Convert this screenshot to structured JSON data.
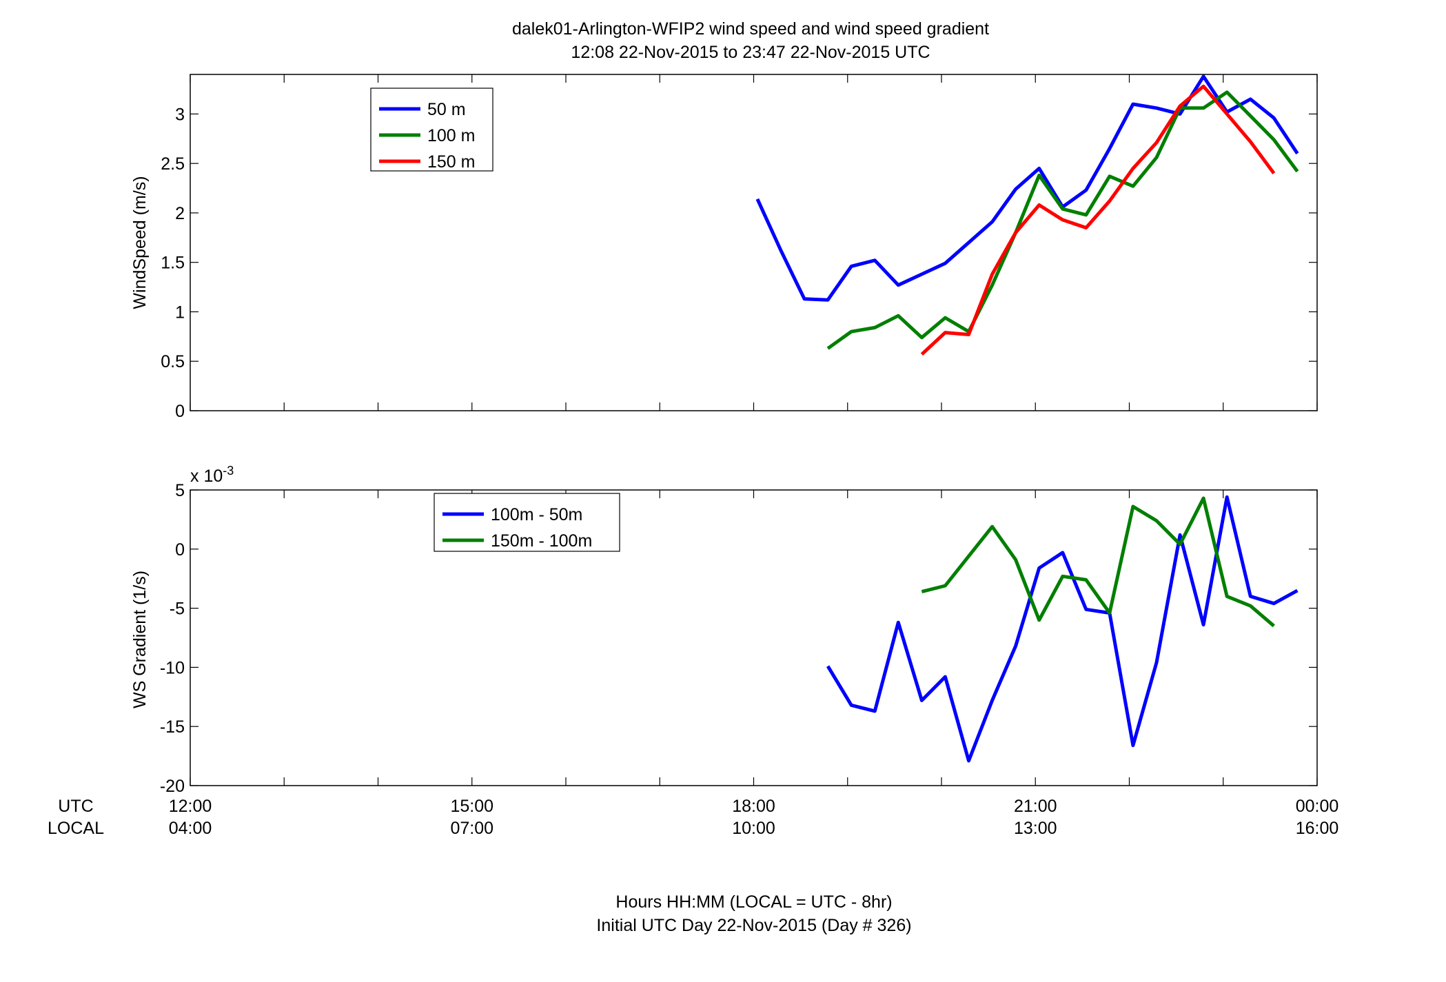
{
  "figure": {
    "title_line1": "dalek01-Arlington-WFIP2  wind speed and wind speed gradient",
    "title_line2": "12:08 22-Nov-2015 to 23:47 22-Nov-2015  UTC",
    "footer_line1": "Hours HH:MM  (LOCAL = UTC - 8hr)",
    "footer_line2": "Initial UTC Day 22-Nov-2015 (Day # 326)",
    "utc_row_label": "UTC",
    "local_row_label": "LOCAL",
    "x_ticks_utc": [
      "12:00",
      "15:00",
      "18:00",
      "21:00",
      "00:00"
    ],
    "x_ticks_local": [
      "04:00",
      "07:00",
      "10:00",
      "13:00",
      "16:00"
    ]
  },
  "chart_data": [
    {
      "type": "line",
      "ylabel": "WindSpeed (m/s)",
      "xlim": [
        12,
        24
      ],
      "ylim": [
        0,
        3.4
      ],
      "yticks": [
        0,
        0.5,
        1,
        1.5,
        2,
        2.5,
        3
      ],
      "ytick_labels": [
        "0",
        "0.5",
        "1",
        "1.5",
        "2",
        "2.5",
        "3"
      ],
      "x_unit": "hours UTC",
      "grid": false,
      "legend_position": "top-left",
      "series": [
        {
          "name": "50 m",
          "color": "#0000ff",
          "x": [
            18.04,
            18.29,
            18.54,
            18.79,
            19.04,
            19.29,
            19.54,
            19.79,
            20.04,
            20.29,
            20.54,
            20.79,
            21.04,
            21.29,
            21.54,
            21.79,
            22.04,
            22.29,
            22.54,
            22.79,
            23.04,
            23.29,
            23.54,
            23.79
          ],
          "y": [
            2.14,
            1.62,
            1.13,
            1.12,
            1.46,
            1.52,
            1.27,
            1.38,
            1.49,
            1.7,
            1.91,
            2.24,
            2.45,
            2.06,
            2.23,
            2.65,
            3.1,
            3.06,
            3.0,
            3.38,
            3.02,
            3.15,
            2.96,
            2.6
          ]
        },
        {
          "name": "100 m",
          "color": "#007f00",
          "x": [
            18.79,
            19.04,
            19.29,
            19.54,
            19.79,
            20.04,
            20.29,
            20.54,
            20.79,
            21.04,
            21.29,
            21.54,
            21.79,
            22.04,
            22.29,
            22.54,
            22.79,
            23.04,
            23.29,
            23.54,
            23.79
          ],
          "y": [
            0.63,
            0.8,
            0.84,
            0.96,
            0.74,
            0.94,
            0.8,
            1.27,
            1.8,
            2.38,
            2.04,
            1.98,
            2.37,
            2.27,
            2.56,
            3.06,
            3.06,
            3.22,
            2.98,
            2.74,
            2.42
          ]
        },
        {
          "name": "150 m",
          "color": "#ff0000",
          "x": [
            19.79,
            20.04,
            20.29,
            20.54,
            20.79,
            21.04,
            21.29,
            21.54,
            21.79,
            22.04,
            22.29,
            22.54,
            22.79,
            23.04,
            23.29,
            23.54
          ],
          "y": [
            0.57,
            0.79,
            0.77,
            1.38,
            1.8,
            2.08,
            1.93,
            1.85,
            2.12,
            2.45,
            2.71,
            3.08,
            3.28,
            3.0,
            2.72,
            2.4
          ]
        }
      ]
    },
    {
      "type": "line",
      "ylabel": "WS Gradient (1/s)",
      "y_multiplier_label": "x 10",
      "y_multiplier_exponent": "-3",
      "xlim": [
        12,
        24
      ],
      "ylim": [
        -20,
        5
      ],
      "yticks": [
        -20,
        -15,
        -10,
        -5,
        0,
        5
      ],
      "ytick_labels": [
        "-20",
        "-15",
        "-10",
        "-5",
        "0",
        "5"
      ],
      "x_unit": "hours UTC",
      "grid": false,
      "legend_position": "top-left",
      "series": [
        {
          "name": "100m - 50m",
          "color": "#0000ff",
          "x": [
            18.79,
            19.04,
            19.29,
            19.54,
            19.79,
            20.04,
            20.29,
            20.54,
            20.79,
            21.04,
            21.29,
            21.54,
            21.79,
            22.04,
            22.29,
            22.54,
            22.79,
            23.04,
            23.29,
            23.54,
            23.79
          ],
          "y": [
            -9.9,
            -13.2,
            -13.7,
            -6.2,
            -12.8,
            -10.8,
            -17.9,
            -12.8,
            -8.2,
            -1.6,
            -0.3,
            -5.1,
            -5.4,
            -16.6,
            -9.6,
            1.2,
            -6.4,
            4.4,
            -4.0,
            -4.6,
            -3.5
          ]
        },
        {
          "name": "150m - 100m",
          "color": "#007f00",
          "x": [
            19.79,
            20.04,
            20.29,
            20.54,
            20.79,
            21.04,
            21.29,
            21.54,
            21.79,
            22.04,
            22.29,
            22.54,
            22.79,
            23.04,
            23.29,
            23.54
          ],
          "y": [
            -3.6,
            -3.1,
            -0.6,
            1.9,
            -0.9,
            -6.0,
            -2.3,
            -2.6,
            -5.4,
            3.6,
            2.4,
            0.4,
            4.3,
            -4.0,
            -4.8,
            -6.5
          ]
        }
      ]
    }
  ]
}
